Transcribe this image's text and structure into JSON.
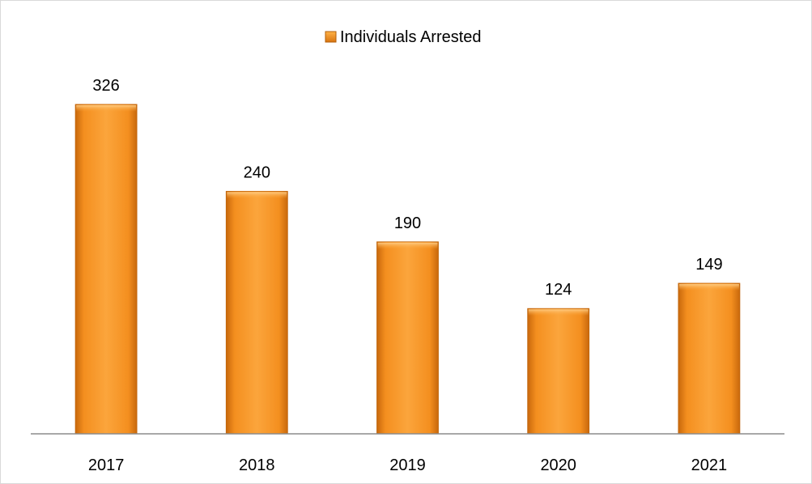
{
  "chart_data": {
    "type": "bar",
    "categories": [
      "2017",
      "2018",
      "2019",
      "2020",
      "2021"
    ],
    "series": [
      {
        "name": "Individuals Arrested",
        "values": [
          326,
          240,
          190,
          124,
          149
        ],
        "color": "#f7941d"
      }
    ],
    "data_labels": [
      "326",
      "240",
      "190",
      "124",
      "149"
    ],
    "legend_position": "top",
    "grid": false,
    "ylim": [
      0,
      350
    ],
    "title": "",
    "xlabel": "",
    "ylabel": ""
  },
  "colors": {
    "bar_fill": "#f7941d",
    "bar_edge": "#c0640a",
    "axis_line": "#8c8c8c"
  }
}
